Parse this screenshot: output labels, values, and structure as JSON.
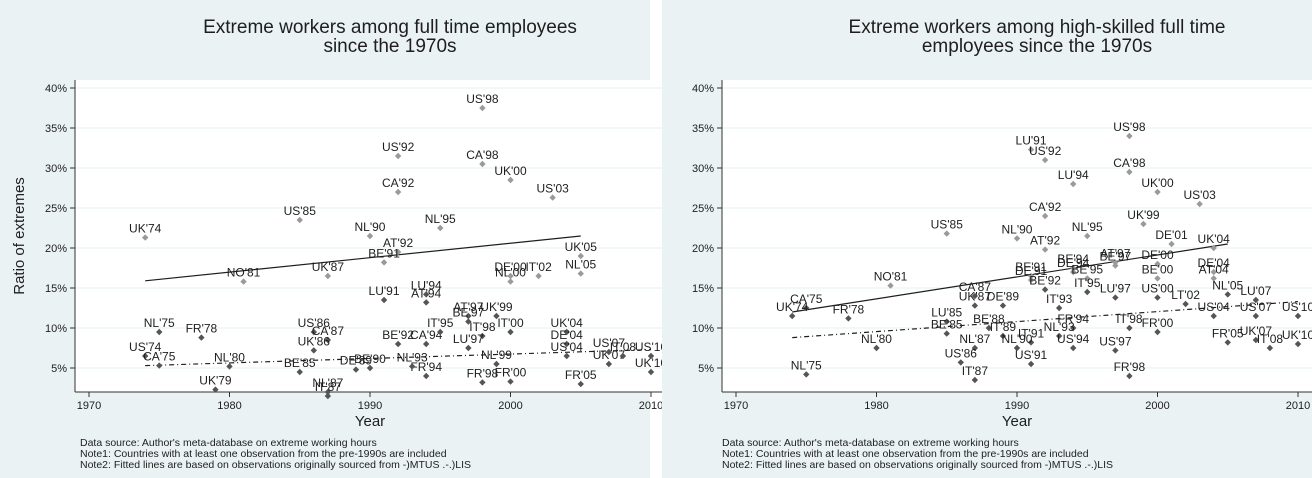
{
  "chart_data": [
    {
      "type": "scatter",
      "title": [
        "Extreme workers among full time employees",
        "since the 1970s"
      ],
      "xlabel": "Year",
      "ylabel": "Ratio of extremes",
      "xlim": [
        1969,
        2011
      ],
      "ylim": [
        2,
        41
      ],
      "xticks": [
        "1970",
        "1980",
        "1990",
        "2000",
        "2010"
      ],
      "yticks": [
        "5%",
        "10%",
        "15%",
        "20%",
        "25%",
        "30%",
        "35%",
        "40%"
      ],
      "grid": "horizontal",
      "fitted_lines": [
        {
          "style": "solid",
          "x": [
            1974,
            2005
          ],
          "y": [
            15.9,
            21.5
          ]
        },
        {
          "style": "dashed",
          "x": [
            1974,
            2010
          ],
          "y": [
            5.3,
            7.3
          ]
        }
      ],
      "points": [
        {
          "label": "US'98",
          "x": 1998,
          "y": 37.5
        },
        {
          "label": "US'92",
          "x": 1992,
          "y": 31.5
        },
        {
          "label": "CA'98",
          "x": 1998,
          "y": 30.5
        },
        {
          "label": "UK'00",
          "x": 2000,
          "y": 28.5
        },
        {
          "label": "CA'92",
          "x": 1992,
          "y": 27
        },
        {
          "label": "US'03",
          "x": 2003,
          "y": 26.3
        },
        {
          "label": "US'85",
          "x": 1985,
          "y": 23.5
        },
        {
          "label": "NL'95",
          "x": 1995,
          "y": 22.5
        },
        {
          "label": "NL'90",
          "x": 1990,
          "y": 21.5
        },
        {
          "label": "UK'74",
          "x": 1974,
          "y": 21.3
        },
        {
          "label": "AT'92",
          "x": 1992,
          "y": 19.5
        },
        {
          "label": "UK'05",
          "x": 2005,
          "y": 19
        },
        {
          "label": "BE'91",
          "x": 1991,
          "y": 18.2
        },
        {
          "label": "UK'87",
          "x": 1987,
          "y": 16.5
        },
        {
          "label": "NO'81",
          "x": 1981,
          "y": 15.8
        },
        {
          "label": "NL'05",
          "x": 2005,
          "y": 16.8
        },
        {
          "label": "IT'02",
          "x": 2002,
          "y": 16.5
        },
        {
          "label": "NL'00",
          "x": 2000,
          "y": 15.8
        },
        {
          "label": "DE'00",
          "x": 2000,
          "y": 16.5
        },
        {
          "label": "LU'91",
          "x": 1991,
          "y": 13.5
        },
        {
          "label": "LU'94",
          "x": 1994,
          "y": 14.2
        },
        {
          "label": "AT'94",
          "x": 1994,
          "y": 13.2
        },
        {
          "label": "NL'75",
          "x": 1975,
          "y": 9.5
        },
        {
          "label": "FR'78",
          "x": 1978,
          "y": 8.8
        },
        {
          "label": "US'74",
          "x": 1974,
          "y": 6.5
        },
        {
          "label": "CA'75",
          "x": 1975,
          "y": 5.3
        },
        {
          "label": "NL'80",
          "x": 1980,
          "y": 5.2
        },
        {
          "label": "UK'79",
          "x": 1979,
          "y": 2.3
        },
        {
          "label": "US'86",
          "x": 1986,
          "y": 9.5
        },
        {
          "label": "CA'87",
          "x": 1987,
          "y": 8.5
        },
        {
          "label": "UK'86",
          "x": 1986,
          "y": 7.2
        },
        {
          "label": "BE'85",
          "x": 1985,
          "y": 4.5
        },
        {
          "label": "NL'87",
          "x": 1987,
          "y": 2
        },
        {
          "label": "IT'87",
          "x": 1987,
          "y": 1.5
        },
        {
          "label": "BE'90",
          "x": 1990,
          "y": 5
        },
        {
          "label": "DE'89",
          "x": 1989,
          "y": 4.8
        },
        {
          "label": "BE'92",
          "x": 1992,
          "y": 8
        },
        {
          "label": "CA'94",
          "x": 1994,
          "y": 8
        },
        {
          "label": "FR'94",
          "x": 1994,
          "y": 4
        },
        {
          "label": "NL'93",
          "x": 1993,
          "y": 5.2
        },
        {
          "label": "AT'97",
          "x": 1997,
          "y": 11.5
        },
        {
          "label": "BE'97",
          "x": 1997,
          "y": 10.8
        },
        {
          "label": "UK'99",
          "x": 1999,
          "y": 11.5
        },
        {
          "label": "IT'95",
          "x": 1995,
          "y": 9.5
        },
        {
          "label": "IT'98",
          "x": 1998,
          "y": 9
        },
        {
          "label": "LU'97",
          "x": 1997,
          "y": 7.5
        },
        {
          "label": "NL'99",
          "x": 1999,
          "y": 5.5
        },
        {
          "label": "FR'98",
          "x": 1998,
          "y": 3.2
        },
        {
          "label": "FR'00",
          "x": 2000,
          "y": 3.3
        },
        {
          "label": "IT'00",
          "x": 2000,
          "y": 9.5
        },
        {
          "label": "UK'04",
          "x": 2004,
          "y": 9.5
        },
        {
          "label": "DE'04",
          "x": 2004,
          "y": 8
        },
        {
          "label": "US'04",
          "x": 2004,
          "y": 6.5
        },
        {
          "label": "FR'05",
          "x": 2005,
          "y": 3
        },
        {
          "label": "UK'07",
          "x": 2007,
          "y": 5.5
        },
        {
          "label": "US'07",
          "x": 2007,
          "y": 7
        },
        {
          "label": "IT'08",
          "x": 2008,
          "y": 6.5
        },
        {
          "label": "US'10",
          "x": 2010,
          "y": 6.5
        },
        {
          "label": "UK'10",
          "x": 2010,
          "y": 4.5
        }
      ],
      "notes": [
        "Data source: Author's meta-database on extreme working hours",
        "Note1: Countries with at least one observation from the pre-1990s are included",
        "Note2: Fitted lines are based on observations originally sourced from -)MTUS .-.)LIS"
      ]
    },
    {
      "type": "scatter",
      "title": [
        "Extreme workers among high-skilled full time",
        "employees since the 1970s"
      ],
      "xlabel": "Year",
      "ylabel": "",
      "xlim": [
        1969,
        2011
      ],
      "ylim": [
        2,
        41
      ],
      "xticks": [
        "1970",
        "1980",
        "1990",
        "2000",
        "2010"
      ],
      "yticks": [
        "5%",
        "10%",
        "15%",
        "20%",
        "25%",
        "30%",
        "35%",
        "40%"
      ],
      "grid": "horizontal",
      "fitted_lines": [
        {
          "style": "solid",
          "x": [
            1974,
            2005
          ],
          "y": [
            12.0,
            20.5
          ]
        },
        {
          "style": "dashed",
          "x": [
            1974,
            2010
          ],
          "y": [
            8.8,
            13.3
          ]
        }
      ],
      "points": [
        {
          "label": "US'98",
          "x": 1998,
          "y": 34
        },
        {
          "label": "LU'91",
          "x": 1991,
          "y": 32.3
        },
        {
          "label": "US'92",
          "x": 1992,
          "y": 31
        },
        {
          "label": "CA'98",
          "x": 1998,
          "y": 29.5
        },
        {
          "label": "LU'94",
          "x": 1994,
          "y": 28
        },
        {
          "label": "UK'00",
          "x": 2000,
          "y": 27
        },
        {
          "label": "US'03",
          "x": 2003,
          "y": 25.5
        },
        {
          "label": "CA'92",
          "x": 1992,
          "y": 24
        },
        {
          "label": "UK'99",
          "x": 1999,
          "y": 23
        },
        {
          "label": "US'85",
          "x": 1985,
          "y": 21.8
        },
        {
          "label": "NL'90",
          "x": 1990,
          "y": 21.2
        },
        {
          "label": "NL'95",
          "x": 1995,
          "y": 21.5
        },
        {
          "label": "DE'01",
          "x": 2001,
          "y": 20.5
        },
        {
          "label": "AT'92",
          "x": 1992,
          "y": 19.8
        },
        {
          "label": "UK'04",
          "x": 2004,
          "y": 20
        },
        {
          "label": "AT'97",
          "x": 1997,
          "y": 18.2
        },
        {
          "label": "BE'97",
          "x": 1997,
          "y": 17.8
        },
        {
          "label": "DE'00",
          "x": 2000,
          "y": 18
        },
        {
          "label": "DE'04",
          "x": 2004,
          "y": 17
        },
        {
          "label": "AT'04",
          "x": 2004,
          "y": 16.2
        },
        {
          "label": "BE'94",
          "x": 1994,
          "y": 17.5
        },
        {
          "label": "DE'94",
          "x": 1994,
          "y": 17
        },
        {
          "label": "BE'95",
          "x": 1995,
          "y": 16.2
        },
        {
          "label": "BE'91",
          "x": 1991,
          "y": 16.5
        },
        {
          "label": "DE'91",
          "x": 1991,
          "y": 16
        },
        {
          "label": "BE'00",
          "x": 2000,
          "y": 16.2
        },
        {
          "label": "NO'81",
          "x": 1981,
          "y": 15.3
        },
        {
          "label": "BE'92",
          "x": 1992,
          "y": 14.8
        },
        {
          "label": "IT'95",
          "x": 1995,
          "y": 14.5
        },
        {
          "label": "LU'97",
          "x": 1997,
          "y": 13.8
        },
        {
          "label": "US'00",
          "x": 2000,
          "y": 13.8
        },
        {
          "label": "LT'02",
          "x": 2002,
          "y": 13
        },
        {
          "label": "NL'05",
          "x": 2005,
          "y": 14.2
        },
        {
          "label": "LU'07",
          "x": 2007,
          "y": 13.5
        },
        {
          "label": "CA'87",
          "x": 1987,
          "y": 14
        },
        {
          "label": "UK'87",
          "x": 1987,
          "y": 12.8
        },
        {
          "label": "DE'89",
          "x": 1989,
          "y": 12.8
        },
        {
          "label": "IT'93",
          "x": 1993,
          "y": 12.5
        },
        {
          "label": "CA'75",
          "x": 1975,
          "y": 12.5
        },
        {
          "label": "UK'74",
          "x": 1974,
          "y": 11.5
        },
        {
          "label": "FR'78",
          "x": 1978,
          "y": 11.2
        },
        {
          "label": "US'04",
          "x": 2004,
          "y": 11.5
        },
        {
          "label": "US'07",
          "x": 2007,
          "y": 11.5
        },
        {
          "label": "US'10",
          "x": 2010,
          "y": 11.5
        },
        {
          "label": "LU'85",
          "x": 1985,
          "y": 10.8
        },
        {
          "label": "BE'88",
          "x": 1988,
          "y": 10
        },
        {
          "label": "BE'85",
          "x": 1985,
          "y": 9.3
        },
        {
          "label": "FR'94",
          "x": 1994,
          "y": 10
        },
        {
          "label": "IT'98",
          "x": 1998,
          "y": 10
        },
        {
          "label": "FR'00",
          "x": 2000,
          "y": 9.5
        },
        {
          "label": "NL'80",
          "x": 1980,
          "y": 7.5
        },
        {
          "label": "NL'87",
          "x": 1987,
          "y": 7.5
        },
        {
          "label": "IT'89",
          "x": 1989,
          "y": 9
        },
        {
          "label": "IT'91",
          "x": 1991,
          "y": 8.2
        },
        {
          "label": "NL'90",
          "x": 1990,
          "y": 7.5
        },
        {
          "label": "NL'93",
          "x": 1993,
          "y": 9
        },
        {
          "label": "US'94",
          "x": 1994,
          "y": 7.5
        },
        {
          "label": "US'97",
          "x": 1997,
          "y": 7.2
        },
        {
          "label": "UK'07",
          "x": 2007,
          "y": 8.5
        },
        {
          "label": "FR'05",
          "x": 2005,
          "y": 8.2
        },
        {
          "label": "IT'08",
          "x": 2008,
          "y": 7.5
        },
        {
          "label": "UK'10",
          "x": 2010,
          "y": 8
        },
        {
          "label": "US'86",
          "x": 1986,
          "y": 5.7
        },
        {
          "label": "US'91",
          "x": 1991,
          "y": 5.5
        },
        {
          "label": "IT'87",
          "x": 1987,
          "y": 3.5
        },
        {
          "label": "NL'75",
          "x": 1975,
          "y": 4.2
        },
        {
          "label": "FR'98",
          "x": 1998,
          "y": 4
        }
      ],
      "notes": [
        "Data source: Author's meta-database on extreme working hours",
        "Note1: Countries with at least one observation from the pre-1990s are included",
        "Note2: Fitted lines are based on observations originally sourced from -)MTUS .-.)LIS"
      ]
    }
  ]
}
